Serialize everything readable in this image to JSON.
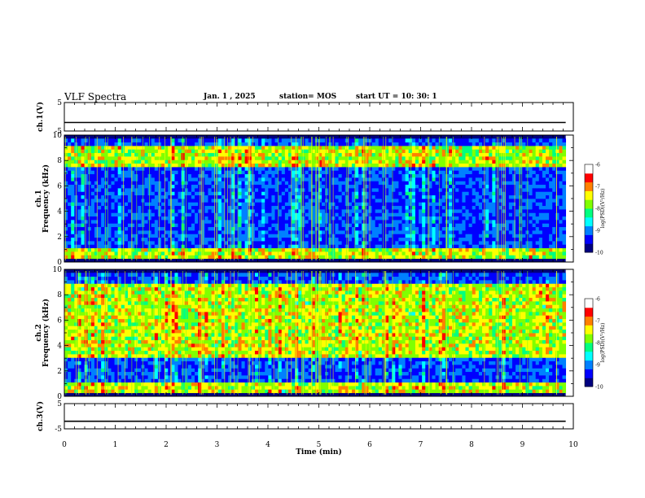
{
  "header": {
    "title": "VLF Spectra",
    "date": "Jan. 1 , 2025",
    "station": "station= MOS",
    "start": "start  UT =   10: 30: 1"
  },
  "chart_data": [
    {
      "type": "line",
      "ylabel": "ch.1(V)",
      "ylim": [
        -5,
        5
      ],
      "yticks": [
        "5",
        "-5"
      ],
      "series": [
        {
          "values": [
            -2,
            -2,
            -2,
            -2,
            -2,
            -2,
            -2,
            -2,
            -2,
            -2,
            -2
          ]
        }
      ]
    },
    {
      "type": "heatmap",
      "ylabel": "ch.1\nFrequency (kHz)",
      "ylabel_line1": "ch.1",
      "ylabel_line2": "Frequency (kHz)",
      "ylim": [
        0,
        10
      ],
      "yticks": [
        "0",
        "2",
        "4",
        "6",
        "8",
        "10"
      ],
      "colorbar": {
        "label": "log(PSD)(V²/Hz)",
        "ticks": [
          "-6",
          "-7",
          "-8",
          "-9",
          "-10"
        ],
        "range": [
          -10,
          -6
        ]
      },
      "band_kHz": [
        0,
        10
      ],
      "enhanced_bands_kHz": [
        [
          0,
          1.2
        ],
        [
          7.5,
          9.2
        ]
      ]
    },
    {
      "type": "heatmap",
      "ylabel": "ch.2\nFrequency (kHz)",
      "ylabel_line1": "ch.2",
      "ylabel_line2": "Frequency (kHz)",
      "ylim": [
        0,
        10
      ],
      "yticks": [
        "0",
        "2",
        "4",
        "6",
        "8",
        "10"
      ],
      "colorbar": {
        "label": "log(PSD)(V²/Hz)",
        "ticks": [
          "-6",
          "-7",
          "-8",
          "-9",
          "-10"
        ],
        "range": [
          -10,
          -6
        ]
      },
      "band_kHz": [
        0,
        10
      ],
      "enhanced_bands_kHz": [
        [
          0,
          1.0
        ],
        [
          3.0,
          9.0
        ]
      ]
    },
    {
      "type": "line",
      "ylabel": "ch.3(V)",
      "ylim": [
        -5,
        5
      ],
      "yticks": [
        "5",
        "-5"
      ],
      "series": [
        {
          "values": [
            -2,
            -2,
            -2,
            -2,
            -2,
            -2,
            -2,
            -2,
            -2,
            -2,
            -2
          ]
        }
      ]
    }
  ],
  "xaxis": {
    "label": "Time (min)",
    "ticks": [
      "0",
      "1",
      "2",
      "3",
      "4",
      "5",
      "6",
      "7",
      "8",
      "9",
      "10"
    ],
    "xlim": [
      0,
      10
    ],
    "data_end_min": 9.85
  },
  "colors": {
    "colormap": [
      "#000080",
      "#0000ff",
      "#0080ff",
      "#00ffff",
      "#00ff80",
      "#80ff00",
      "#ffff00",
      "#ff8000",
      "#ff0000",
      "#ffffff"
    ],
    "axis": "#000000",
    "background": "#ffffff"
  }
}
